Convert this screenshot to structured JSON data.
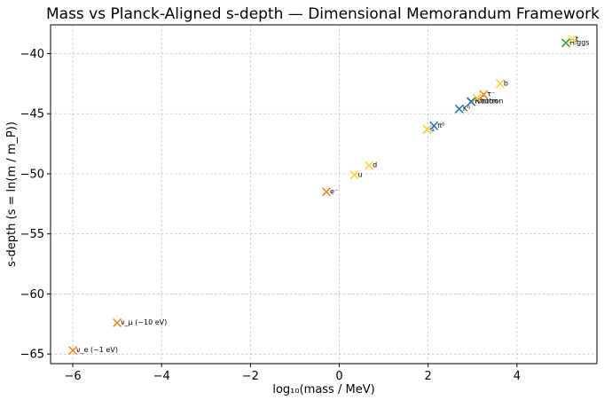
{
  "chart_data": {
    "type": "scatter",
    "title": "Mass vs Planck-Aligned s-depth  —  Dimensional Memorandum Framework",
    "xlabel": "log₁₀(mass / MeV)",
    "ylabel": "s-depth  (s = ln(m / m_P))",
    "xlim": [
      -6.5,
      5.8
    ],
    "ylim": [
      -65.8,
      -37.6
    ],
    "xticks": [
      -6,
      -4,
      -2,
      0,
      2,
      4
    ],
    "xtick_labels": [
      "−6",
      "−4",
      "−2",
      "0",
      "2",
      "4"
    ],
    "yticks": [
      -65,
      -60,
      -55,
      -50,
      -45,
      -40
    ],
    "ytick_labels": [
      "−65",
      "−60",
      "−55",
      "−50",
      "−45",
      "−40"
    ],
    "grid": true,
    "colors": {
      "lepton": "#ff7f0e",
      "quark": "#ffd21f",
      "hadron": "#1f77b4",
      "boson": "#2ca02c"
    },
    "points": [
      {
        "label": "ν_e (~1 eV)",
        "x": -6.0,
        "y": -64.7,
        "group": "lepton"
      },
      {
        "label": "ν_μ (~10 eV)",
        "x": -5.0,
        "y": -62.4,
        "group": "lepton"
      },
      {
        "label": "e⁻",
        "x": -0.29,
        "y": -51.5,
        "group": "lepton"
      },
      {
        "label": "u",
        "x": 0.34,
        "y": -50.1,
        "group": "quark"
      },
      {
        "label": "d",
        "x": 0.67,
        "y": -49.3,
        "group": "quark"
      },
      {
        "label": "",
        "x": 1.98,
        "y": -46.3,
        "group": "lepton"
      },
      {
        "label": "s",
        "x": 1.98,
        "y": -46.3,
        "group": "quark"
      },
      {
        "label": "π⁰",
        "x": 2.13,
        "y": -46.0,
        "group": "hadron"
      },
      {
        "label": "K⁰",
        "x": 2.7,
        "y": -44.6,
        "group": "hadron"
      },
      {
        "label": "Proton",
        "x": 2.97,
        "y": -44.0,
        "group": "hadron"
      },
      {
        "label": "Neutron",
        "x": 2.97,
        "y": -44.0,
        "group": "hadron"
      },
      {
        "label": "c",
        "x": 3.1,
        "y": -43.7,
        "group": "quark"
      },
      {
        "label": "τ⁻",
        "x": 3.25,
        "y": -43.4,
        "group": "lepton"
      },
      {
        "label": "b",
        "x": 3.62,
        "y": -42.5,
        "group": "quark"
      },
      {
        "label": "Higgs",
        "x": 5.1,
        "y": -39.1,
        "group": "boson"
      },
      {
        "label": "t",
        "x": 5.24,
        "y": -38.8,
        "group": "quark"
      }
    ]
  }
}
